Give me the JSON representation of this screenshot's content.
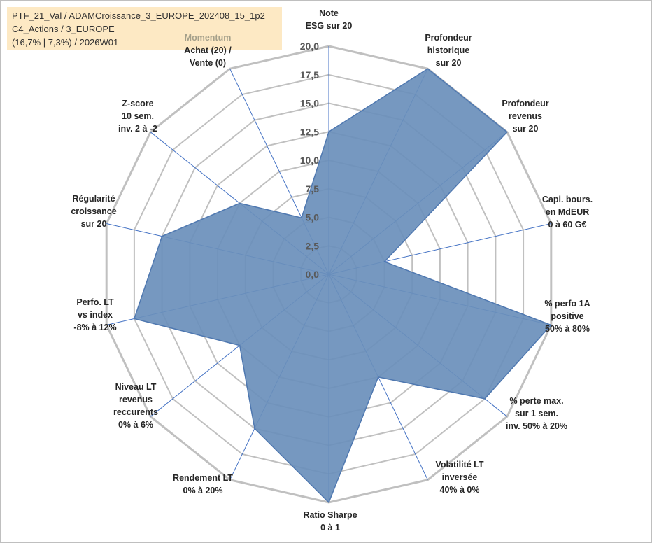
{
  "info": {
    "line1": "PTF_21_Val / ADAMCroissance_3_EUROPE_202408_15_1p2",
    "line2": "C4_Actions / 3_EUROPE",
    "line3": "(16,7% | 7,3%) / 2026W01"
  },
  "colors": {
    "fill": "#6a8fbb",
    "stroke": "#4f78b0",
    "grid": "#c0c0c0",
    "spoke": "#4472c4",
    "info_bg": "#fde9c4"
  },
  "chart_data": {
    "type": "radar",
    "range": [
      0,
      20
    ],
    "ticks": [
      "0,0",
      "2,5",
      "5,0",
      "7,5",
      "10,0",
      "12,5",
      "15,0",
      "17,5",
      "20,0"
    ],
    "tick_values": [
      0,
      2.5,
      5,
      7.5,
      10,
      12.5,
      15,
      17.5,
      20
    ],
    "grid": true,
    "legend": "none",
    "axes": [
      {
        "lines": [
          "Note",
          "ESG sur 20"
        ],
        "value": 12.5
      },
      {
        "lines": [
          "Profondeur",
          "historique",
          "sur 20"
        ],
        "value": 20
      },
      {
        "lines": [
          "Profondeur",
          "revenus",
          "sur 20"
        ],
        "value": 20
      },
      {
        "lines": [
          "Capi. bours.",
          "en MdEUR",
          "0 à 60 G€"
        ],
        "value": 5
      },
      {
        "lines": [
          "% perfo 1A",
          "positive",
          "50% à 80%"
        ],
        "value": 20
      },
      {
        "lines": [
          "% perte max.",
          "sur 1 sem.",
          "inv. 50% à 20%"
        ],
        "value": 17.5
      },
      {
        "lines": [
          "Volatilité LT",
          "inversée",
          "40% à 0%"
        ],
        "value": 10
      },
      {
        "lines": [
          "Ratio Sharpe",
          "0 à 1"
        ],
        "value": 20
      },
      {
        "lines": [
          "Rendement LT",
          "0% à 20%"
        ],
        "value": 15
      },
      {
        "lines": [
          "Niveau LT",
          "revenus",
          "reccurents",
          "0% à 6%"
        ],
        "value": 10
      },
      {
        "lines": [
          "Perfo. LT",
          "vs index",
          "-8% à 12%"
        ],
        "value": 17.5
      },
      {
        "lines": [
          "Régularité",
          "croissance",
          "sur 20"
        ],
        "value": 15
      },
      {
        "lines": [
          "Z-score",
          "10 sem.",
          "inv. 2 à -2"
        ],
        "value": 10
      },
      {
        "lines": [
          "Momentum",
          "Achat (20) /",
          "Vente (0)"
        ],
        "value": 5.5
      }
    ]
  }
}
